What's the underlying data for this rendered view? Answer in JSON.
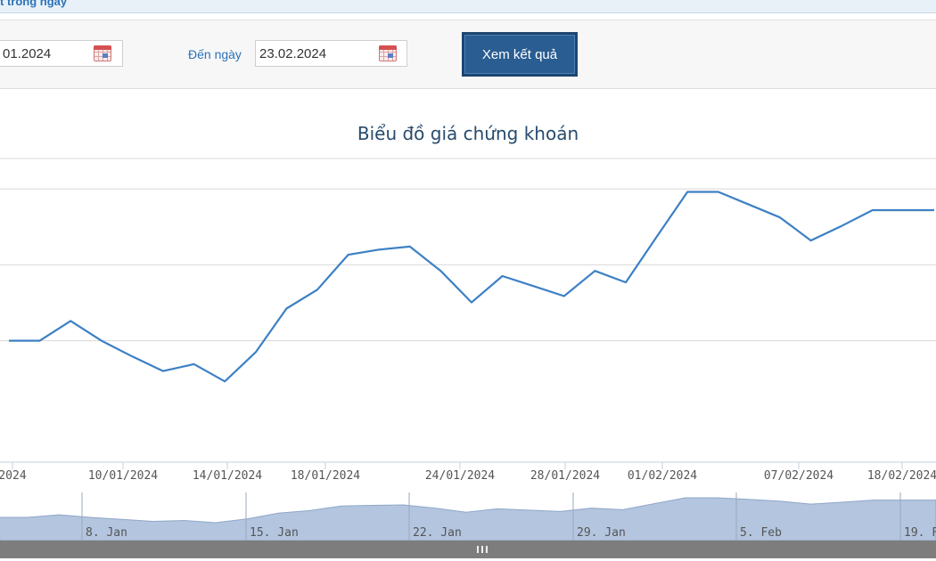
{
  "header": {
    "title": "t trong ngày"
  },
  "filter": {
    "from_date_value": "01.2024",
    "to_label": "Đến ngày",
    "to_date_value": "23.02.2024",
    "submit_label": "Xem kết quả"
  },
  "chart_data": {
    "type": "line",
    "title": "Biểu đồ giá chứng khoán",
    "xlabel": "",
    "ylabel": "",
    "ylim": [
      0,
      100
    ],
    "grid": true,
    "series": [
      {
        "color": "#3d80c4",
        "x": [
          "2024-01-04",
          "2024-01-05",
          "2024-01-08",
          "2024-01-09",
          "2024-01-10",
          "2024-01-11",
          "2024-01-12",
          "2024-01-15",
          "2024-01-16",
          "2024-01-17",
          "2024-01-18",
          "2024-01-19",
          "2024-01-22",
          "2024-01-23",
          "2024-01-24",
          "2024-01-25",
          "2024-01-26",
          "2024-01-29",
          "2024-01-30",
          "2024-01-31",
          "2024-02-01",
          "2024-02-02",
          "2024-02-05",
          "2024-02-06",
          "2024-02-07",
          "2024-02-08",
          "2024-02-19",
          "2024-02-20",
          "2024-02-21",
          "2024-02-22",
          "2024-02-23"
        ],
        "values": [
          40.0,
          40.0,
          46.5,
          40.0,
          34.8,
          30.0,
          32.3,
          26.6,
          36.2,
          50.6,
          56.8,
          68.3,
          70.0,
          71.0,
          63.0,
          52.6,
          61.3,
          58.0,
          54.7,
          63.0,
          59.2,
          74.2,
          89.0,
          89.0,
          84.8,
          80.6,
          73.0,
          77.8,
          83.0,
          83.0,
          83.0
        ]
      }
    ],
    "x_tick_labels": [
      "2024",
      "10/01/2024",
      "14/01/2024",
      "18/01/2024",
      "24/01/2024",
      "28/01/2024",
      "01/02/2024",
      "07/02/2024",
      "18/02/2024"
    ],
    "navigator": {
      "tick_labels": [
        "8. Jan",
        "15. Jan",
        "22. Jan",
        "29. Jan",
        "5. Feb",
        "19. F"
      ],
      "fill_color": "#b3c5df",
      "line_color": "#8fa7c8"
    }
  },
  "scrollbar": {
    "grip_icon": "grip-lines-icon"
  }
}
